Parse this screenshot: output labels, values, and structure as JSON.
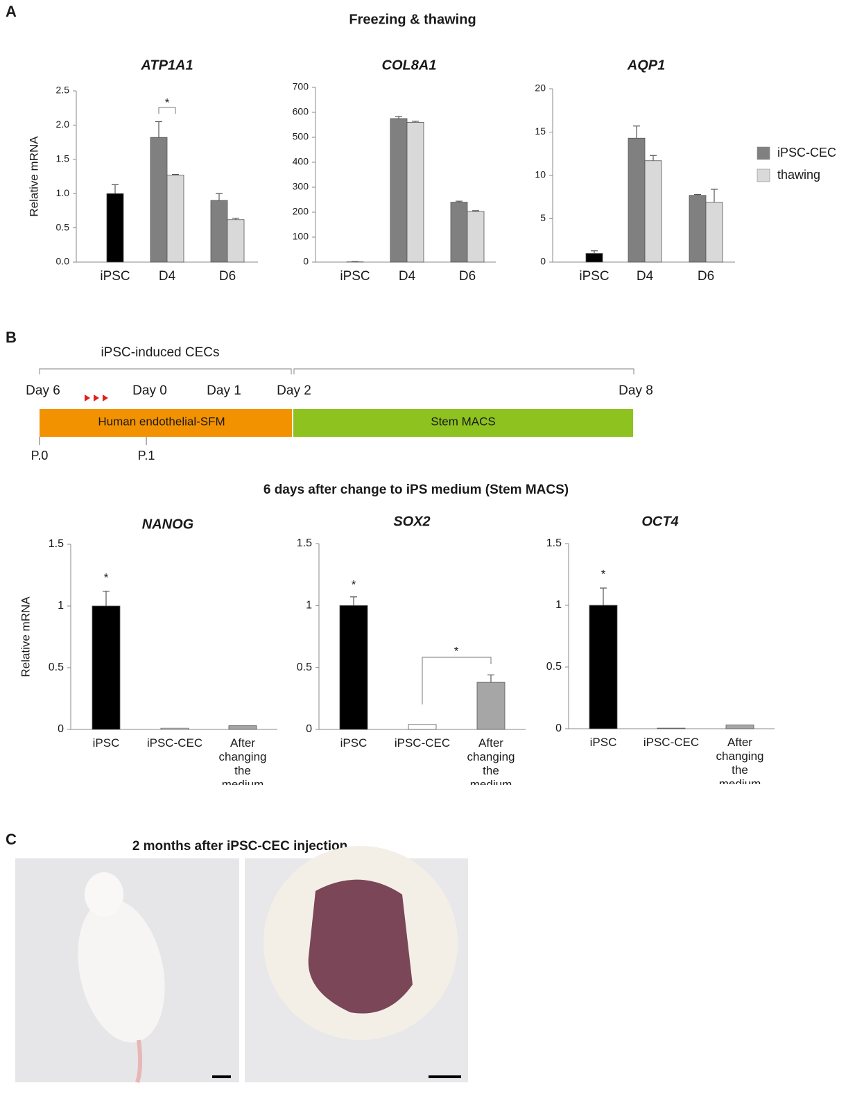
{
  "panel_labels": [
    "A",
    "B",
    "C"
  ],
  "panel_a_title": "Freezing & thawing",
  "panel_b_title": "6 days after change to iPS medium (Stem MACS)",
  "panel_c_title": "2 months after iPSC-CEC injection",
  "timeline": {
    "bracket_label": "iPSC-induced CECs",
    "days": [
      "Day 6",
      "Day 0",
      "Day 1",
      "Day 2",
      "Day 8"
    ],
    "media": [
      "Human endothelial-SFM",
      "Stem MACS"
    ],
    "passages": [
      "P.0",
      "P.1"
    ]
  },
  "chart_data": [
    {
      "type": "bar",
      "title": "ATP1A1",
      "ylabel": "Relative mRNA",
      "categories": [
        "iPSC",
        "D4",
        "D6"
      ],
      "ylim": [
        0,
        2.5
      ],
      "yticks": [
        {
          "value": 0,
          "label": "0.0"
        },
        0.5,
        {
          "value": 1,
          "label": "1.0"
        },
        1.5,
        {
          "value": 2,
          "label": "2.0"
        },
        2.5
      ],
      "series": [
        {
          "name": "iPSC-CEC",
          "color": "#808080",
          "point_colors": [
            "#000000",
            "#808080",
            "#808080"
          ],
          "values": [
            1.0,
            1.82,
            0.9
          ],
          "errors": [
            0.13,
            0.23,
            0.1
          ]
        },
        {
          "name": "thawing",
          "color": "#d9d9d9",
          "values": [
            null,
            1.27,
            0.62
          ],
          "errors": [
            null,
            0.01,
            0.02
          ]
        }
      ],
      "annotations": [
        "*"
      ]
    },
    {
      "type": "bar",
      "title": "COL8A1",
      "categories": [
        "iPSC",
        "D4",
        "D6"
      ],
      "ylim": [
        0,
        700
      ],
      "yticks": [
        0,
        100,
        200,
        300,
        400,
        500,
        600,
        700
      ],
      "series": [
        {
          "name": "iPSC-CEC",
          "color": "#808080",
          "point_colors": [
            "#000000",
            "#808080",
            "#808080"
          ],
          "values": [
            1,
            575,
            240
          ],
          "errors": [
            1,
            8,
            4
          ]
        },
        {
          "name": "thawing",
          "color": "#d9d9d9",
          "values": [
            null,
            560,
            203
          ],
          "errors": [
            null,
            4,
            3
          ]
        }
      ]
    },
    {
      "type": "bar",
      "title": "AQP1",
      "categories": [
        "iPSC",
        "D4",
        "D6"
      ],
      "ylim": [
        0,
        20
      ],
      "yticks": [
        0,
        5,
        10,
        15,
        20
      ],
      "series": [
        {
          "name": "iPSC-CEC",
          "color": "#808080",
          "point_colors": [
            "#000000",
            "#808080",
            "#808080"
          ],
          "values": [
            1.0,
            14.3,
            7.7
          ],
          "errors": [
            0.3,
            1.4,
            0.1
          ]
        },
        {
          "name": "thawing",
          "color": "#d9d9d9",
          "values": [
            null,
            11.7,
            6.9
          ],
          "errors": [
            null,
            0.6,
            1.5
          ]
        }
      ]
    },
    {
      "type": "bar",
      "title": "NANOG",
      "ylabel": "Relative mRNA",
      "categories": [
        "iPSC",
        "iPSC-CEC",
        "After changing the medium"
      ],
      "ylim": [
        0,
        1.5
      ],
      "yticks": [
        0,
        0.5,
        1,
        1.5
      ],
      "values": [
        1,
        0.01,
        0.03
      ],
      "errors": [
        0.12,
        null,
        null
      ],
      "colors": [
        "#000000",
        "#ffffff",
        "#a6a6a6"
      ],
      "annotations": [
        "*"
      ]
    },
    {
      "type": "bar",
      "title": "SOX2",
      "categories": [
        "iPSC",
        "iPSC-CEC",
        "After changing the medium"
      ],
      "ylim": [
        0,
        1.5
      ],
      "yticks": [
        0,
        0.5,
        1,
        1.5
      ],
      "values": [
        1,
        0.04,
        0.38
      ],
      "errors": [
        0.07,
        null,
        0.06
      ],
      "colors": [
        "#000000",
        "#ffffff",
        "#a6a6a6"
      ],
      "annotations": [
        "*",
        "*"
      ]
    },
    {
      "type": "bar",
      "title": "OCT4",
      "categories": [
        "iPSC",
        "iPSC-CEC",
        "After changing the medium"
      ],
      "ylim": [
        0,
        1.5
      ],
      "yticks": [
        0,
        0.5,
        1,
        1.5
      ],
      "values": [
        1,
        0.005,
        0.03
      ],
      "errors": [
        0.14,
        null,
        null
      ],
      "colors": [
        "#000000",
        "#ffffff",
        "#a6a6a6"
      ],
      "annotations": [
        "*"
      ]
    }
  ]
}
